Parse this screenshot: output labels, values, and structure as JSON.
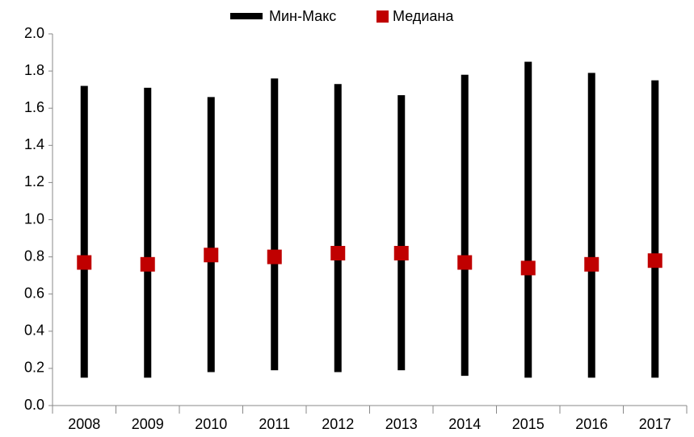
{
  "chart_data": {
    "type": "range",
    "categories": [
      "2008",
      "2009",
      "2010",
      "2011",
      "2012",
      "2013",
      "2014",
      "2015",
      "2016",
      "2017"
    ],
    "series": [
      {
        "name": "Мин-Макс",
        "color": "#000000",
        "min": [
          0.15,
          0.15,
          0.18,
          0.19,
          0.18,
          0.19,
          0.16,
          0.15,
          0.15,
          0.15
        ],
        "max": [
          1.72,
          1.71,
          1.66,
          1.76,
          1.73,
          1.67,
          1.78,
          1.85,
          1.79,
          1.75
        ]
      },
      {
        "name": "Медиана",
        "color": "#c00000",
        "values": [
          0.77,
          0.76,
          0.81,
          0.8,
          0.82,
          0.82,
          0.77,
          0.74,
          0.76,
          0.78
        ]
      }
    ],
    "ylim": [
      0,
      2
    ],
    "yticks": [
      {
        "value": 0,
        "label": "0.0"
      },
      0.2,
      0.4,
      0.6,
      0.8,
      {
        "value": 1,
        "label": "1.0"
      },
      1.2,
      1.4,
      1.6,
      1.8,
      {
        "value": 2,
        "label": "2.0"
      }
    ],
    "grid": false,
    "legend": "top"
  }
}
